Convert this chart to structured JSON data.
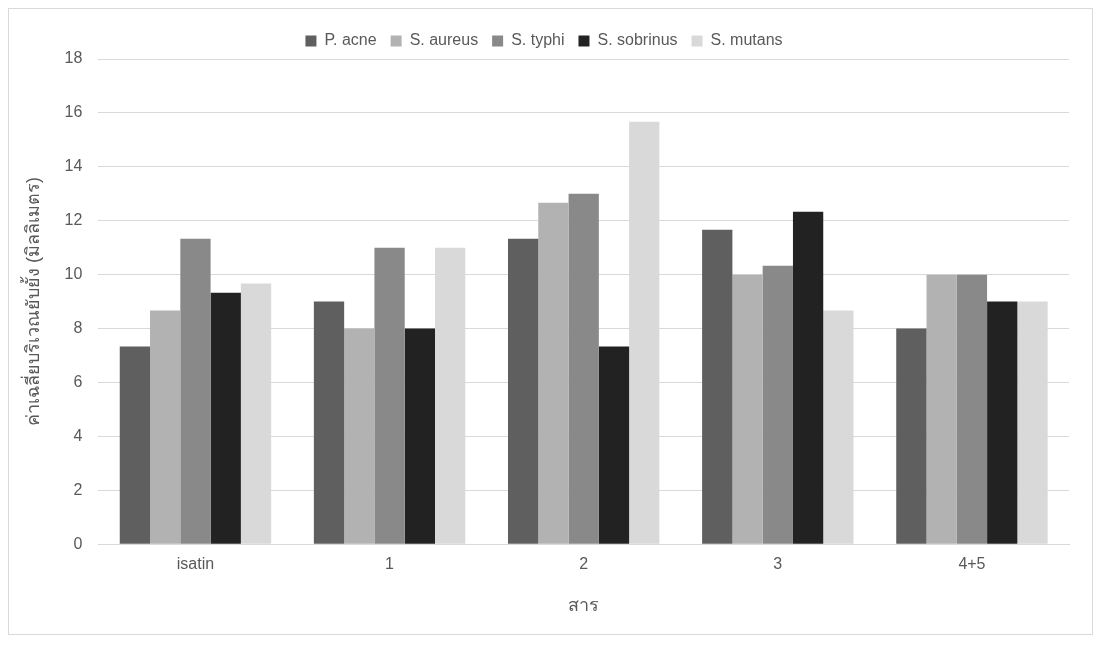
{
  "chart_data": {
    "type": "bar",
    "xlabel": "สาร",
    "ylabel": "ค่าเฉลี่ยบริเวณยับยั้ง (มิลลิเมตร)",
    "categories": [
      "isatin",
      "1",
      "2",
      "3",
      "4+5"
    ],
    "series": [
      {
        "name": "P. acne",
        "color": "#5f5f5f",
        "values": [
          7.33,
          9,
          11.33,
          11.67,
          8
        ]
      },
      {
        "name": "S. aureus",
        "color": "#b2b2b2",
        "values": [
          8.67,
          8,
          12.67,
          10,
          10
        ]
      },
      {
        "name": "S. typhi",
        "color": "#898989",
        "values": [
          11.33,
          11,
          13,
          10.33,
          10
        ]
      },
      {
        "name": "S. sobrinus",
        "color": "#222222",
        "values": [
          9.33,
          8,
          7.33,
          12.33,
          9
        ]
      },
      {
        "name": "S. mutans",
        "color": "#d9d9d9",
        "values": [
          9.67,
          11,
          15.67,
          8.67,
          9
        ]
      }
    ],
    "ylim": [
      0,
      18
    ],
    "yticks": [
      0,
      2,
      4,
      6,
      8,
      10,
      12,
      14,
      16,
      18
    ],
    "grid": "y",
    "legend": "top"
  }
}
